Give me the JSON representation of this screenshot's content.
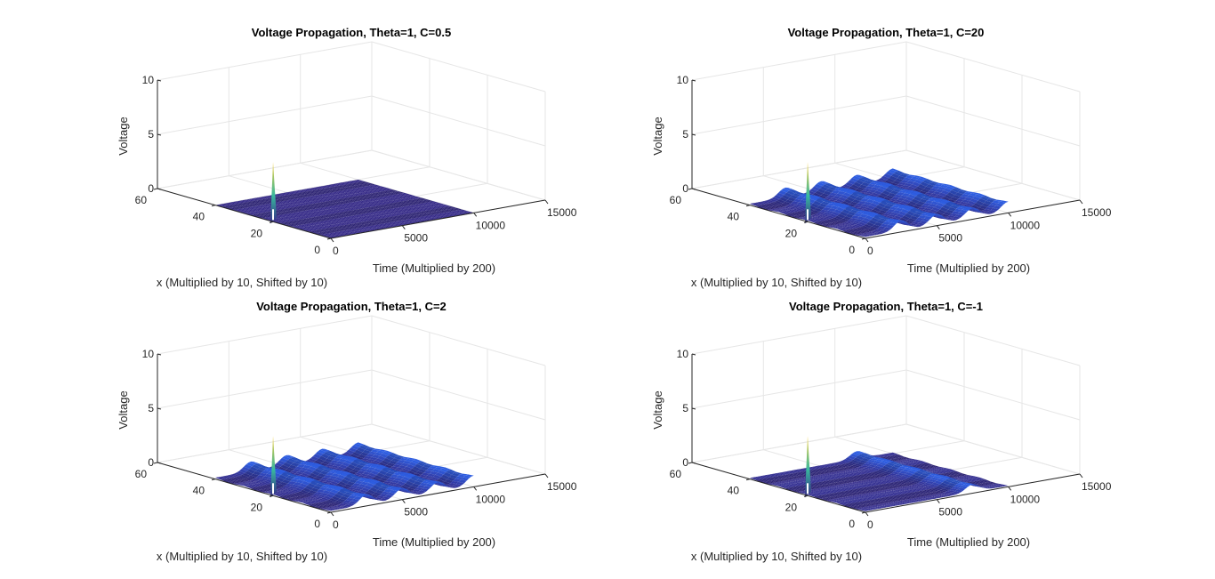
{
  "chart_data": [
    {
      "type": "surface",
      "title": "Voltage Propagation, Theta=1, C=0.5",
      "xlabel": "x (Multiplied by 10, Shifted by 10)",
      "ylabel": "Time (Multiplied by 200)",
      "zlabel": "Voltage",
      "xlim": [
        0,
        60
      ],
      "ylim": [
        0,
        15000
      ],
      "zlim": [
        0,
        10
      ],
      "x_ticks": [
        "0",
        "20",
        "40",
        "60"
      ],
      "y_ticks": [
        "0",
        "5000",
        "10000",
        "15000"
      ],
      "z_ticks": [
        "0",
        "5",
        "10"
      ],
      "x_extent": [
        0,
        40
      ],
      "t_extent": [
        0,
        10000
      ],
      "pulse": {
        "x": 20,
        "t": 0,
        "peak": 5.5
      },
      "wave_amplitude": 0,
      "wave_crests_t": [],
      "grid": true
    },
    {
      "type": "surface",
      "title": "Voltage Propagation, Theta=1, C=20",
      "xlabel": "x (Multiplied by 10, Shifted by 10)",
      "ylabel": "Time (Multiplied by 200)",
      "zlabel": "Voltage",
      "xlim": [
        0,
        60
      ],
      "ylim": [
        0,
        15000
      ],
      "zlim": [
        0,
        10
      ],
      "x_ticks": [
        "0",
        "20",
        "40",
        "60"
      ],
      "y_ticks": [
        "0",
        "5000",
        "10000",
        "15000"
      ],
      "z_ticks": [
        "0",
        "5",
        "10"
      ],
      "x_extent": [
        0,
        40
      ],
      "t_extent": [
        0,
        10000
      ],
      "pulse": {
        "x": 20,
        "t": 0,
        "peak": 5.5
      },
      "wave_amplitude": 0.9,
      "wave_crests_t": [
        2500,
        5000,
        7500,
        10000
      ],
      "grid": true
    },
    {
      "type": "surface",
      "title": "Voltage Propagation, Theta=1, C=2",
      "xlabel": "x (Multiplied by 10, Shifted by 10)",
      "ylabel": "Time (Multiplied by 200)",
      "zlabel": "Voltage",
      "xlim": [
        0,
        60
      ],
      "ylim": [
        0,
        15000
      ],
      "zlim": [
        0,
        10
      ],
      "x_ticks": [
        "0",
        "20",
        "40",
        "60"
      ],
      "y_ticks": [
        "0",
        "5000",
        "10000",
        "15000"
      ],
      "z_ticks": [
        "0",
        "5",
        "10"
      ],
      "x_extent": [
        0,
        40
      ],
      "t_extent": [
        0,
        10000
      ],
      "pulse": {
        "x": 20,
        "t": 0,
        "peak": 5.5
      },
      "wave_amplitude": 0.9,
      "wave_crests_t": [
        2500,
        5000,
        7500,
        10000
      ],
      "grid": true
    },
    {
      "type": "surface",
      "title": "Voltage Propagation, Theta=1, C=-1",
      "xlabel": "x (Multiplied by 10, Shifted by 10)",
      "ylabel": "Time (Multiplied by 200)",
      "zlabel": "Voltage",
      "xlim": [
        0,
        60
      ],
      "ylim": [
        0,
        15000
      ],
      "zlim": [
        0,
        10
      ],
      "x_ticks": [
        "0",
        "20",
        "40",
        "60"
      ],
      "y_ticks": [
        "0",
        "5000",
        "10000",
        "15000"
      ],
      "z_ticks": [
        "0",
        "5",
        "10"
      ],
      "x_extent": [
        0,
        40
      ],
      "t_extent": [
        0,
        10000
      ],
      "pulse": {
        "x": 20,
        "t": 0,
        "peak": 5.5
      },
      "wave_amplitude": 0.7,
      "wave_crests_t": [
        7500
      ],
      "grid": true
    }
  ],
  "colors": {
    "surface_base": "#352a87",
    "surface_ridge": "#2e5de0",
    "surface_shadow": "#2a3fbf",
    "pulse_tip": "#f9d03a",
    "pulse_mid": "#38b99e"
  }
}
